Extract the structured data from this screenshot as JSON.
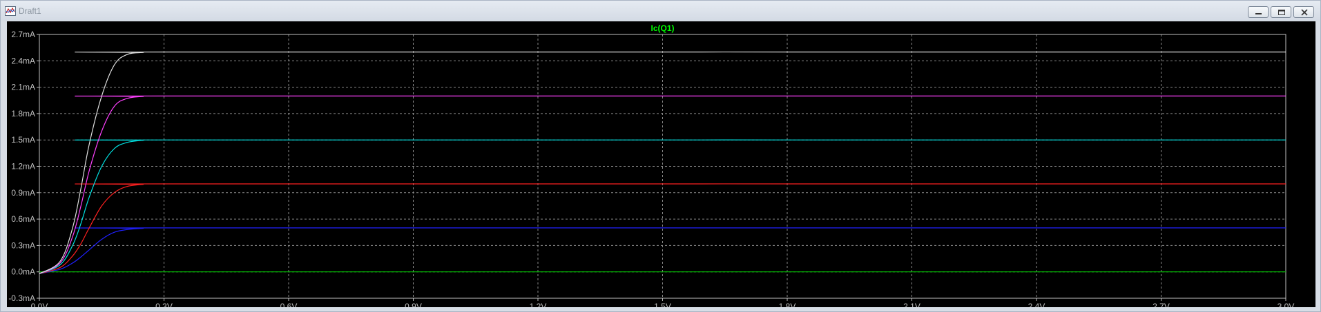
{
  "window": {
    "title": "Draft1",
    "icons": {
      "app": "waveform-icon",
      "minimize": "minimize-icon",
      "restore": "restore-icon",
      "close": "close-icon"
    }
  },
  "chart_data": {
    "type": "line",
    "title": "Ic(Q1)",
    "xlabel": "",
    "ylabel": "",
    "xlim": [
      0,
      3.0
    ],
    "ylim": [
      -0.3,
      2.7
    ],
    "grid": true,
    "background": "#000000",
    "axis_color": "#c0c0c0",
    "title_color": "#00ff00",
    "x_ticks": [
      {
        "value": 0.0,
        "label": "0.0V"
      },
      {
        "value": 0.3,
        "label": "0.3V"
      },
      {
        "value": 0.6,
        "label": "0.6V"
      },
      {
        "value": 0.9,
        "label": "0.9V"
      },
      {
        "value": 1.2,
        "label": "1.2V"
      },
      {
        "value": 1.5,
        "label": "1.5V"
      },
      {
        "value": 1.8,
        "label": "1.8V"
      },
      {
        "value": 2.1,
        "label": "2.1V"
      },
      {
        "value": 2.4,
        "label": "2.4V"
      },
      {
        "value": 2.7,
        "label": "2.7V"
      },
      {
        "value": 3.0,
        "label": "3.0V"
      }
    ],
    "y_ticks": [
      {
        "value": -0.3,
        "label": "-0.3mA"
      },
      {
        "value": 0.0,
        "label": "0.0mA"
      },
      {
        "value": 0.3,
        "label": "0.3mA"
      },
      {
        "value": 0.6,
        "label": "0.6mA"
      },
      {
        "value": 0.9,
        "label": "0.9mA"
      },
      {
        "value": 1.2,
        "label": "1.2mA"
      },
      {
        "value": 1.5,
        "label": "1.5mA"
      },
      {
        "value": 1.8,
        "label": "1.8mA"
      },
      {
        "value": 2.1,
        "label": "2.1mA"
      },
      {
        "value": 2.4,
        "label": "2.4mA"
      },
      {
        "value": 2.7,
        "label": "2.7mA"
      }
    ],
    "series": [
      {
        "color": "#00c000",
        "x": [
          0,
          3.0
        ],
        "y": [
          0.0,
          0.0
        ]
      },
      {
        "color": "#2020ff",
        "x": [
          0,
          0.05,
          0.08,
          0.1,
          0.12,
          0.15,
          0.18,
          0.21,
          0.25,
          0.3,
          3.0
        ],
        "y": [
          -0.02,
          0.03,
          0.1,
          0.17,
          0.25,
          0.37,
          0.45,
          0.48,
          0.495,
          0.5,
          0.5
        ]
      },
      {
        "color": "#ff2020",
        "x": [
          0,
          0.05,
          0.08,
          0.1,
          0.12,
          0.15,
          0.18,
          0.21,
          0.25,
          0.3,
          3.0
        ],
        "y": [
          -0.02,
          0.05,
          0.18,
          0.32,
          0.5,
          0.75,
          0.9,
          0.97,
          0.995,
          1.0,
          1.0
        ]
      },
      {
        "color": "#00e0e0",
        "x": [
          0,
          0.05,
          0.08,
          0.1,
          0.12,
          0.15,
          0.18,
          0.21,
          0.25,
          0.3,
          3.0
        ],
        "y": [
          -0.02,
          0.08,
          0.3,
          0.55,
          0.85,
          1.2,
          1.4,
          1.47,
          1.495,
          1.5,
          1.5
        ]
      },
      {
        "color": "#ff40ff",
        "x": [
          0,
          0.05,
          0.08,
          0.1,
          0.12,
          0.15,
          0.18,
          0.21,
          0.25,
          0.3,
          3.0
        ],
        "y": [
          -0.02,
          0.1,
          0.4,
          0.75,
          1.15,
          1.6,
          1.88,
          1.97,
          1.995,
          2.0,
          2.0
        ]
      },
      {
        "color": "#e0e0e0",
        "x": [
          0,
          0.05,
          0.08,
          0.1,
          0.12,
          0.15,
          0.18,
          0.21,
          0.25,
          0.3,
          3.0
        ],
        "y": [
          -0.02,
          0.12,
          0.5,
          0.95,
          1.45,
          2.0,
          2.35,
          2.47,
          2.495,
          2.5,
          2.5
        ]
      }
    ]
  }
}
